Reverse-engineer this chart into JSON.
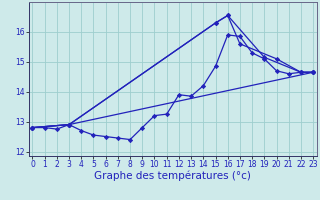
{
  "xlabel": "Graphe des températures (°c)",
  "background_color": "#ceeaea",
  "grid_color": "#9ecece",
  "line_color": "#2222bb",
  "marker": "D",
  "markersize": 2.2,
  "linewidth": 0.9,
  "series": [
    {
      "x": [
        0,
        1,
        2,
        3,
        4,
        5,
        6,
        7,
        8,
        9,
        10,
        11,
        12,
        13,
        14,
        15,
        16,
        17,
        18,
        19,
        20,
        21,
        22,
        23
      ],
      "y": [
        12.8,
        12.8,
        12.75,
        12.9,
        12.7,
        12.55,
        12.5,
        12.45,
        12.4,
        12.8,
        13.2,
        13.25,
        13.9,
        13.85,
        14.2,
        14.85,
        15.9,
        15.85,
        15.3,
        15.1,
        14.7,
        14.6,
        14.65,
        14.65
      ]
    },
    {
      "x": [
        0,
        3,
        15,
        16,
        19,
        22,
        23
      ],
      "y": [
        12.8,
        12.9,
        16.3,
        16.55,
        15.15,
        14.65,
        14.65
      ]
    },
    {
      "x": [
        0,
        3,
        15,
        16,
        17,
        20,
        22,
        23
      ],
      "y": [
        12.8,
        12.9,
        16.3,
        16.55,
        15.6,
        15.1,
        14.65,
        14.65
      ]
    },
    {
      "x": [
        0,
        3,
        23
      ],
      "y": [
        12.8,
        12.9,
        14.65
      ]
    }
  ],
  "xlim": [
    -0.3,
    23.3
  ],
  "ylim": [
    11.85,
    17.0
  ],
  "yticks": [
    12,
    13,
    14,
    15,
    16
  ],
  "xticks": [
    0,
    1,
    2,
    3,
    4,
    5,
    6,
    7,
    8,
    9,
    10,
    11,
    12,
    13,
    14,
    15,
    16,
    17,
    18,
    19,
    20,
    21,
    22,
    23
  ],
  "tick_fontsize": 5.5,
  "xlabel_fontsize": 7.5
}
